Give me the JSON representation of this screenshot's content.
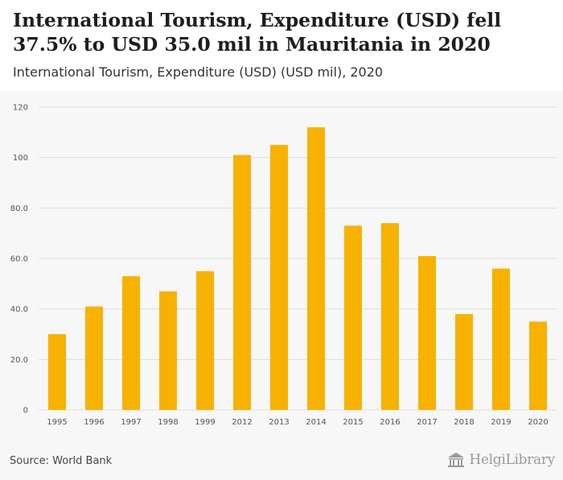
{
  "header": {
    "title": "International Tourism, Expenditure (USD) fell 37.5% to USD 35.0 mil in Mauritania in 2020",
    "subtitle": "International Tourism, Expenditure (USD) (USD mil), 2020"
  },
  "footer": {
    "source": "Source: World Bank",
    "logo_text": "HelgiLibrary"
  },
  "colors": {
    "bar": "#f7b100",
    "grid": "#dddddd",
    "background": "#f7f7f7"
  },
  "chart_data": {
    "type": "bar",
    "title": "International Tourism, Expenditure (USD) fell 37.5% to USD 35.0 mil in Mauritania in 2020",
    "subtitle": "International Tourism, Expenditure (USD) (USD mil), 2020",
    "xlabel": "",
    "ylabel": "",
    "categories": [
      "1995",
      "1996",
      "1997",
      "1998",
      "1999",
      "2012",
      "2013",
      "2014",
      "2015",
      "2016",
      "2017",
      "2018",
      "2019",
      "2020"
    ],
    "values": [
      30,
      41,
      53,
      47,
      55,
      101,
      105,
      112,
      73,
      74,
      61,
      38,
      56,
      35
    ],
    "ylim": [
      0,
      120
    ],
    "yticks": [
      0,
      20,
      40,
      60,
      80,
      100,
      120
    ],
    "ytick_labels": [
      "0",
      "20.0",
      "40.0",
      "60.0",
      "80.0",
      "100",
      "120"
    ],
    "grid": true,
    "legend": "none"
  }
}
